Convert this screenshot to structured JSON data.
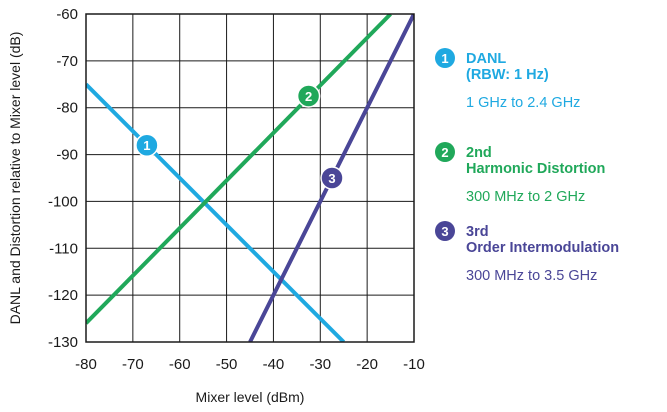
{
  "chart_data": {
    "type": "line",
    "xlabel": "Mixer level (dBm)",
    "ylabel": "DANL and Distortion relative to Mixer level (dB)",
    "xlim": [
      -80,
      -10
    ],
    "ylim": [
      -130,
      -60
    ],
    "xticks": [
      "-80",
      "-70",
      "-60",
      "-50",
      "-40",
      "-30",
      "-20",
      "-10"
    ],
    "yticks": [
      "-60",
      "-70",
      "-80",
      "-90",
      "-100",
      "-110",
      "-120",
      "-130"
    ],
    "grid": true,
    "series": [
      {
        "marker": "1",
        "color": "#1fa9e1",
        "heading": [
          "DANL",
          "(RBW: 1 Hz)"
        ],
        "range": "1 GHz to 2.4 GHz",
        "x": [
          -80,
          -25
        ],
        "y": [
          -75,
          -130
        ],
        "marker_at": [
          -67,
          -88
        ]
      },
      {
        "marker": "2",
        "color": "#20a85a",
        "heading": [
          "2nd",
          "Harmonic Distortion"
        ],
        "range": "300 MHz to 2 GHz",
        "x": [
          -80,
          -15
        ],
        "y": [
          -126,
          -60
        ],
        "marker_at": [
          -32.5,
          -77.5
        ]
      },
      {
        "marker": "3",
        "color": "#4a4697",
        "heading": [
          "3rd",
          "Order Intermodulation"
        ],
        "range": "300 MHz to 3.5 GHz",
        "x": [
          -45,
          -10
        ],
        "y": [
          -130,
          -60
        ],
        "marker_at": [
          -27.5,
          -95
        ]
      }
    ]
  }
}
